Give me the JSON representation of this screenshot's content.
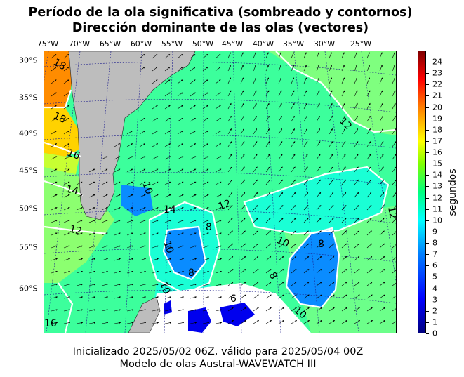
{
  "title_line1": "Período de la ola significativa (sombreado y contornos)",
  "title_line2": "Dirección dominante de las olas (vectores)",
  "lon_labels": [
    "75°W",
    "70°W",
    "65°W",
    "60°W",
    "55°W",
    "50°W",
    "45°W",
    "40°W",
    "35°W",
    "30°W",
    "25°W"
  ],
  "lat_labels": [
    "30°S",
    "35°S",
    "40°S",
    "45°S",
    "50°S",
    "55°S",
    "60°S"
  ],
  "colorbar": {
    "label": "segundos",
    "ticks": [
      "0",
      "1",
      "2",
      "3",
      "4",
      "5",
      "6",
      "7",
      "8",
      "9",
      "10",
      "11",
      "12",
      "13",
      "14",
      "15",
      "16",
      "17",
      "18",
      "19",
      "20",
      "21",
      "22",
      "23",
      "24"
    ],
    "min": 0,
    "max": 25
  },
  "contour_labels": [
    {
      "text": "18"
    },
    {
      "text": "18"
    },
    {
      "text": "16"
    },
    {
      "text": "14"
    },
    {
      "text": "12"
    },
    {
      "text": "12"
    },
    {
      "text": "12"
    },
    {
      "text": "10"
    },
    {
      "text": "10"
    },
    {
      "text": "8"
    },
    {
      "text": "8"
    },
    {
      "text": "8"
    },
    {
      "text": "10"
    },
    {
      "text": "8"
    },
    {
      "text": "12"
    },
    {
      "text": "16"
    },
    {
      "text": "14"
    },
    {
      "text": "10"
    },
    {
      "text": "6"
    },
    {
      "text": "10"
    }
  ],
  "footer_line1": "Inicializado 2025/05/02 06Z, válido para 2025/05/04 00Z",
  "footer_line2": "Modelo de olas Austral-WAVEWATCH III",
  "colors": {
    "land": "#bdbdbd",
    "ocean_main": "#3cff9c",
    "ocean_light": "#7fff7f",
    "cyan": "#1affd5",
    "blue": "#0a8cff",
    "dark_blue": "#0000ee",
    "orange": "#ff7f00",
    "yellow": "#ffd200",
    "contour": "#ffffff"
  }
}
